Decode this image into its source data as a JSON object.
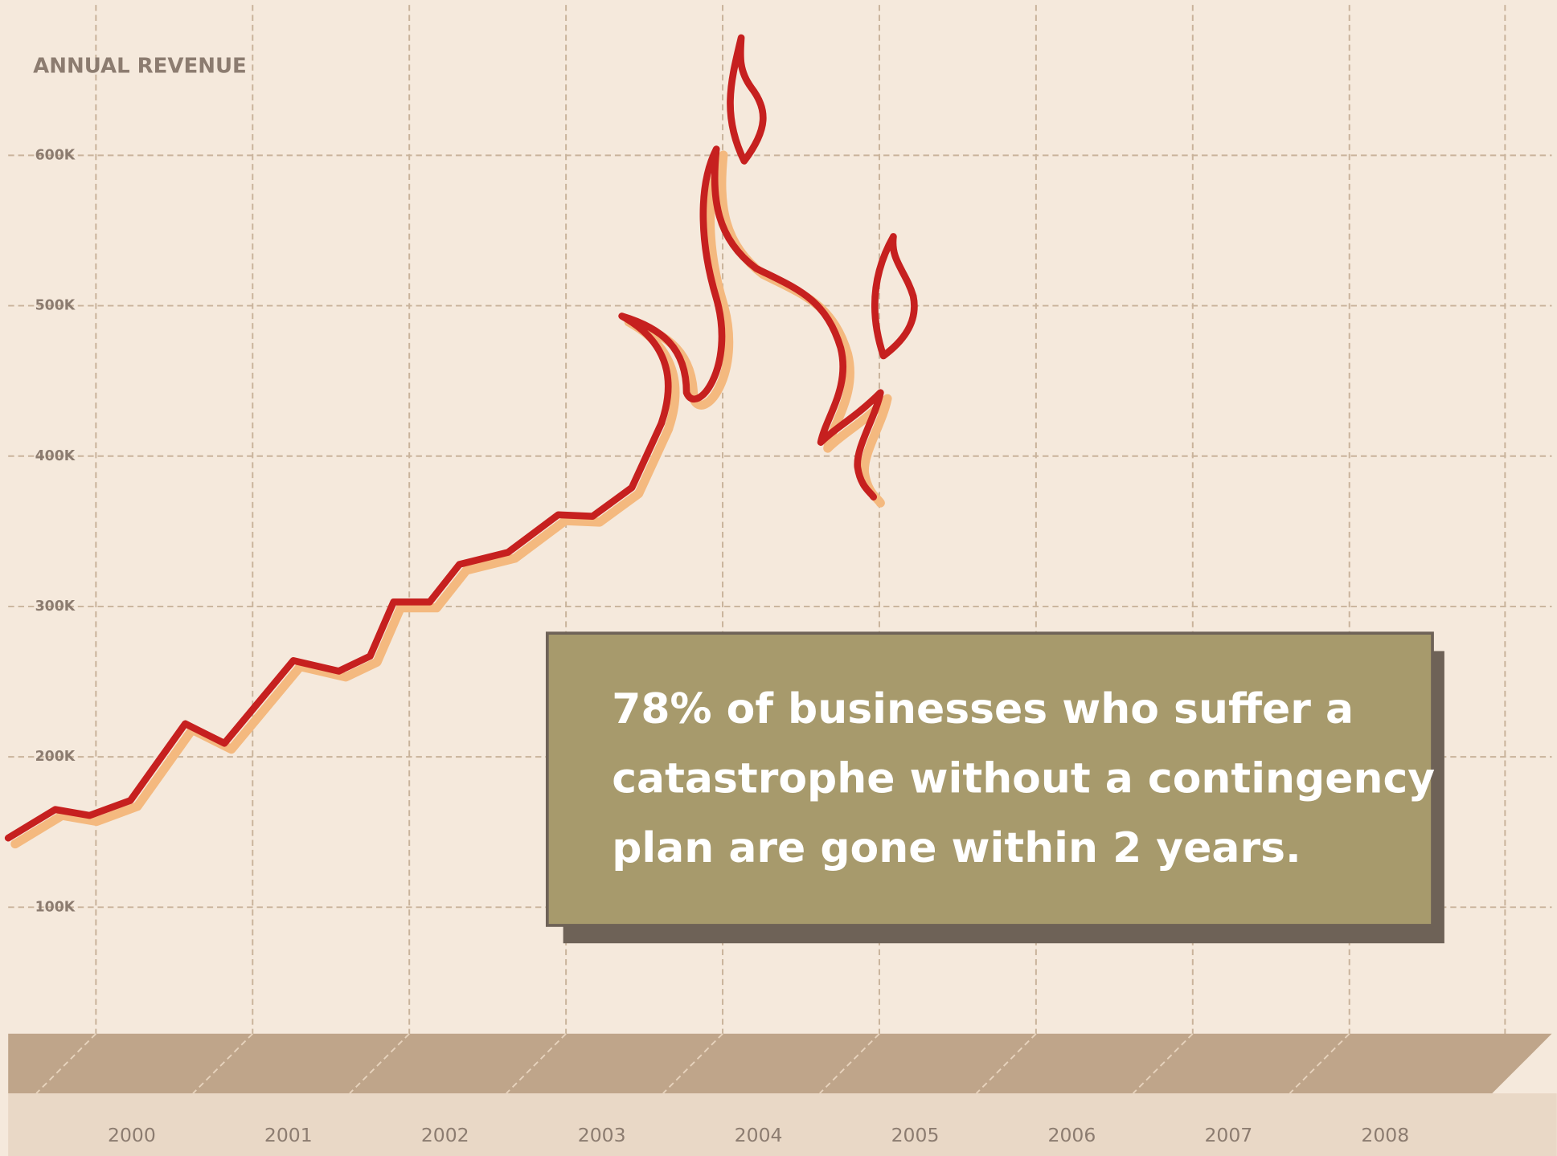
{
  "chart_data": {
    "type": "line",
    "title": "ANNUAL REVENUE",
    "annotation": [
      "78% of businesses who suffer a",
      "catastrophe without a contingency",
      "plan are gone within 2 years."
    ],
    "x": [
      1999.44,
      1999.74,
      1999.96,
      2000.22,
      2000.57,
      2000.82,
      2001.26,
      2001.55,
      2001.75,
      2001.9,
      2002.13,
      2002.32,
      2002.63,
      2002.95,
      2003.17,
      2003.42,
      2003.61
    ],
    "values": [
      146000,
      165000,
      161000,
      171000,
      222000,
      209000,
      264000,
      257000,
      267000,
      303000,
      303000,
      328000,
      336000,
      361000,
      360000,
      379000,
      422000
    ],
    "color": "#c6201f",
    "xlim": [
      1999.44,
      2009.26
    ],
    "xticks": [
      2000,
      2001,
      2002,
      2003,
      2004,
      2005,
      2006,
      2007,
      2008
    ],
    "ylim": [
      0,
      700000
    ],
    "yticks": [
      {
        "value": 100000,
        "label": "100K"
      },
      {
        "value": 200000,
        "label": "200K"
      },
      {
        "value": 300000,
        "label": "300K"
      },
      {
        "value": 400000,
        "label": "400K"
      },
      {
        "value": 500000,
        "label": "500K"
      },
      {
        "value": 600000,
        "label": "600K"
      }
    ],
    "grid": true
  }
}
